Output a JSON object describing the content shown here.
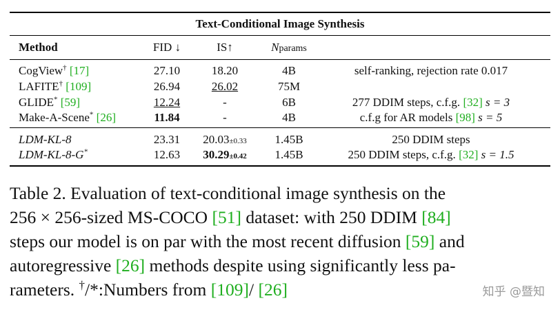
{
  "table": {
    "title": "Text-Conditional Image Synthesis",
    "headers": {
      "method": "Method",
      "fid": "FID ↓",
      "is": "IS↑",
      "nparams_n": "N",
      "nparams_sub": "params"
    },
    "rows": [
      {
        "method": "CogView",
        "mark": "†",
        "cite": "[17]",
        "fid": "27.10",
        "is": "18.20",
        "nparams": "4B",
        "comment": "self-ranking, rejection rate 0.017"
      },
      {
        "method": "LAFITE",
        "mark": "†",
        "cite": "[109]",
        "fid": "26.94",
        "is": "26.02",
        "nparams": "75M",
        "comment": ""
      },
      {
        "method": "GLIDE",
        "mark": "*",
        "cite": "[59]",
        "fid": "12.24",
        "is": "-",
        "nparams": "6B",
        "comment_pre": "277 DDIM steps, c.f.g. ",
        "comment_cite": "[32]",
        "comment_post": " s = 3"
      },
      {
        "method": "Make-A-Scene",
        "mark": "*",
        "cite": "[26]",
        "fid": "11.84",
        "is": "-",
        "nparams": "4B",
        "comment_pre": "c.f.g for AR models ",
        "comment_cite": "[98]",
        "comment_post": " s = 5"
      },
      {
        "method": "LDM-KL-8",
        "mark": "",
        "cite": "",
        "fid": "23.31",
        "is": "20.03",
        "is_pm": "±0.33",
        "nparams": "1.45B",
        "comment": "250 DDIM steps"
      },
      {
        "method": "LDM-KL-8-G",
        "mark": "*",
        "cite": "",
        "fid": "12.63",
        "is": "30.29",
        "is_pm": "±0.42",
        "nparams": "1.45B",
        "comment_pre": "250 DDIM steps, c.f.g. ",
        "comment_cite": "[32]",
        "comment_post": " s = 1.5"
      }
    ]
  },
  "caption": {
    "l1": "Table 2.   Evaluation of text-conditional image synthesis on the",
    "l2a": "256 × 256-sized MS-COCO ",
    "l2c1": "[51]",
    "l2b": " dataset: with 250 DDIM ",
    "l2c2": "[84]",
    "l3a": "steps our model is on par with the most recent diffusion ",
    "l3c": "[59]",
    "l3b": " and",
    "l4a": "autoregressive ",
    "l4c": "[26]",
    "l4b": " methods despite using significantly less pa-",
    "l5a": "rameters. ",
    "l5sup": "†",
    "l5b": "/*:Numbers from ",
    "l5c1": "[109]",
    "l5m": "/ ",
    "l5c2": "[26]"
  },
  "watermark": "知乎 @暨知"
}
